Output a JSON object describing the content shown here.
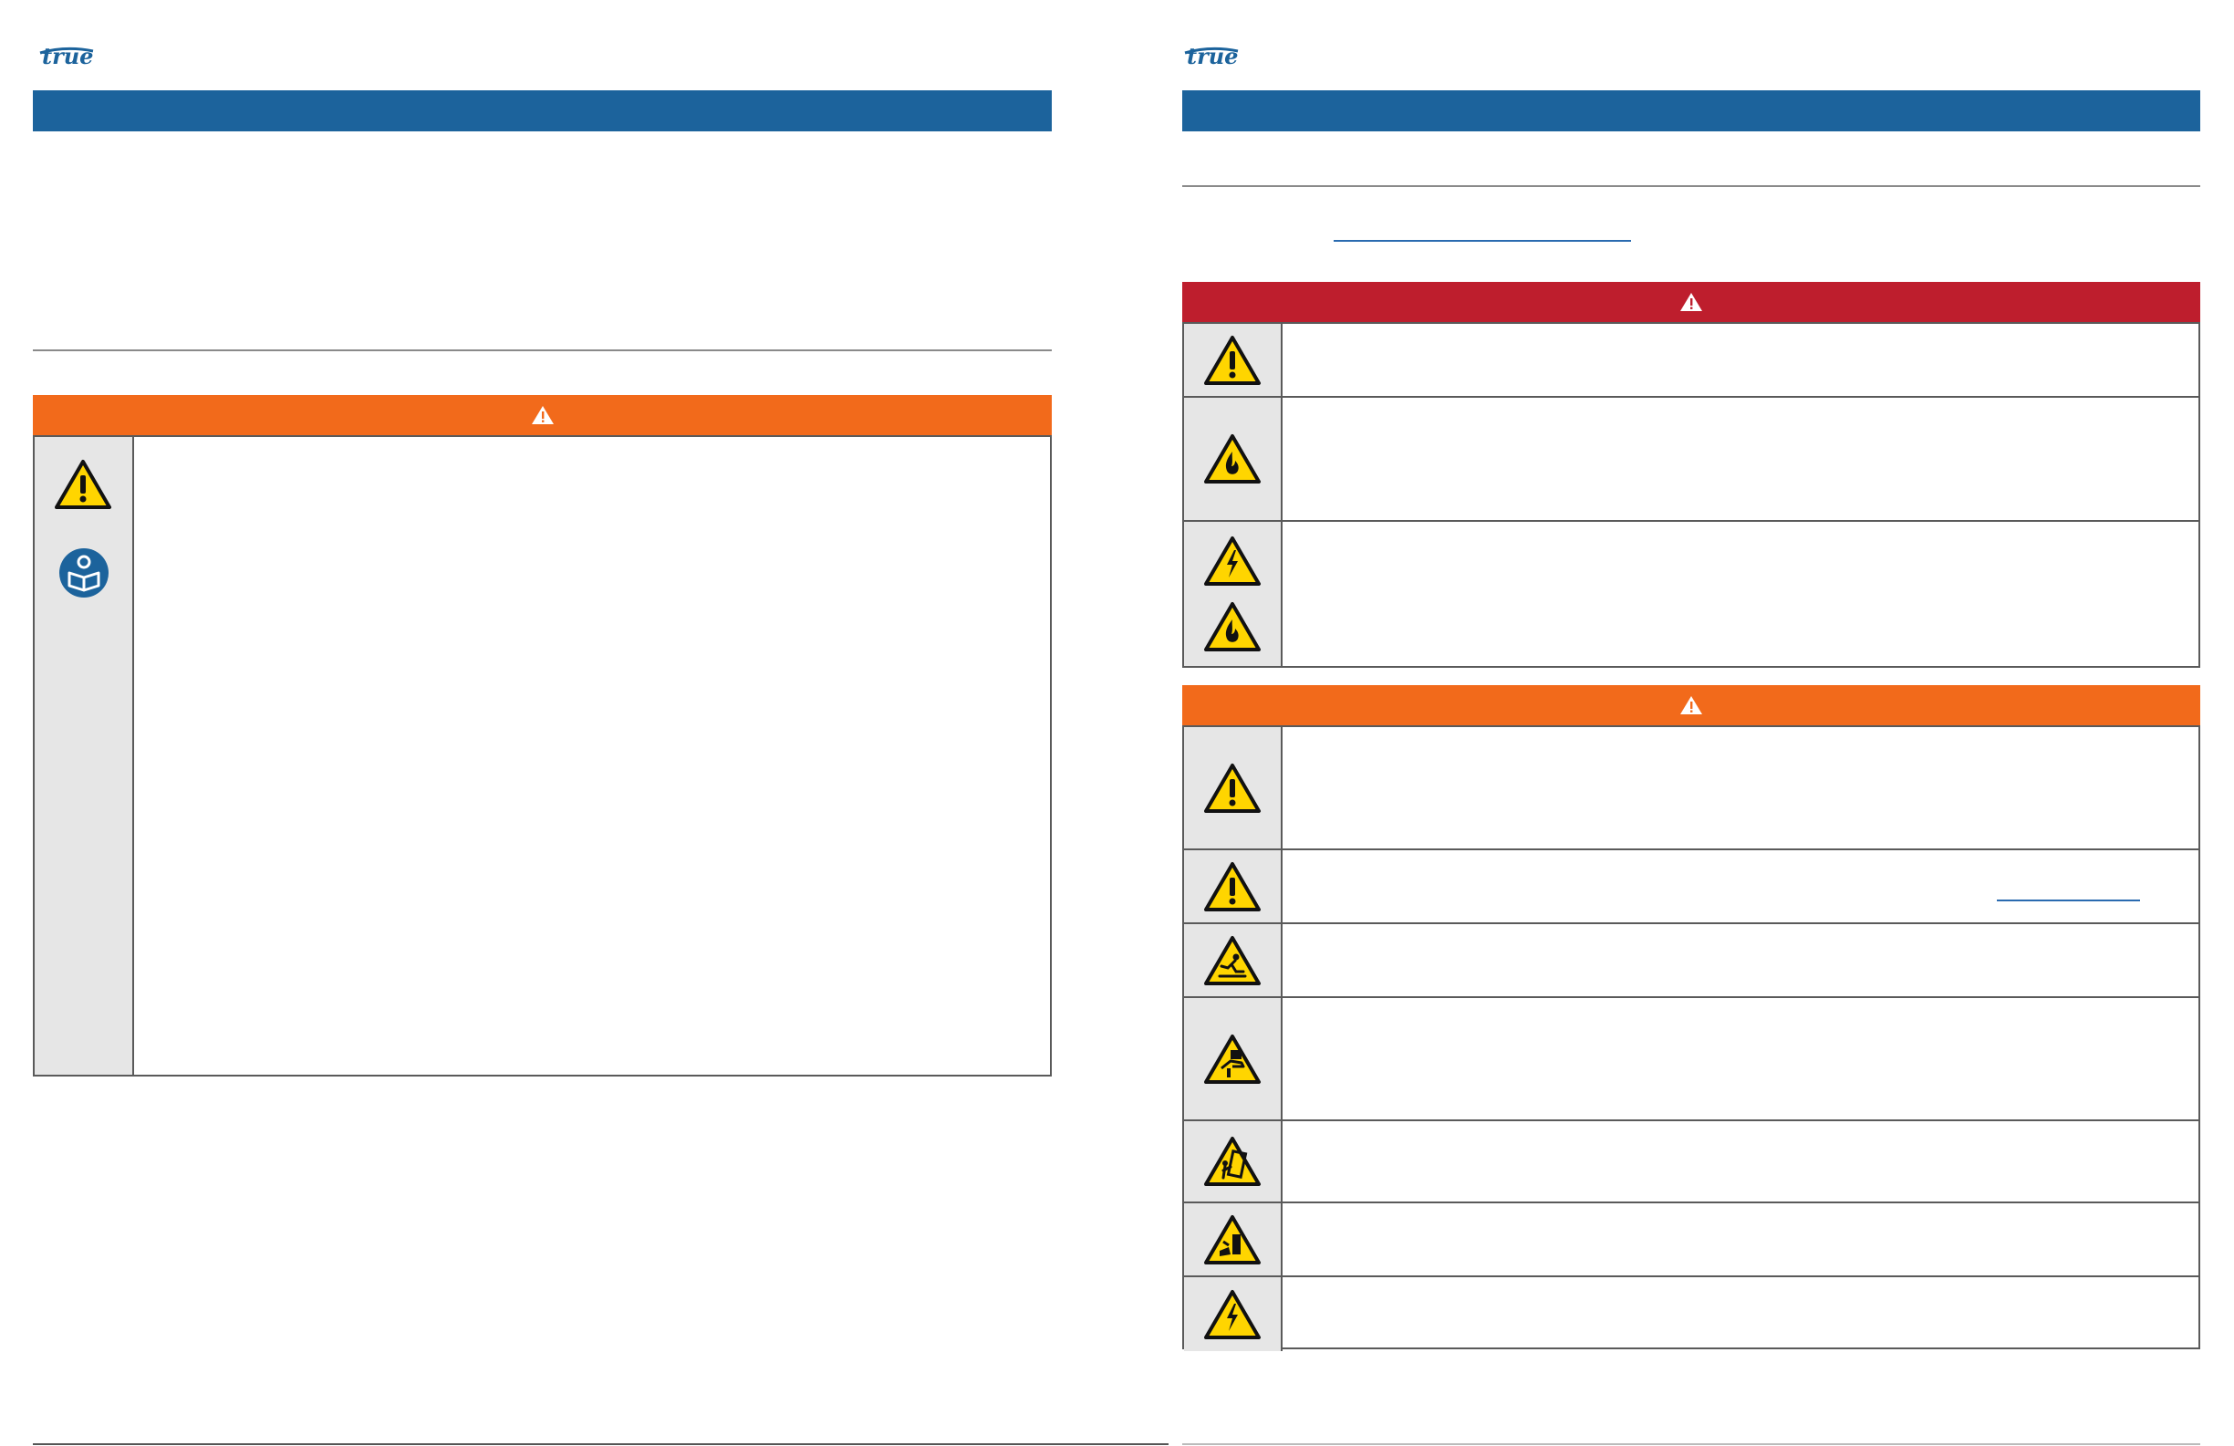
{
  "brand": {
    "logo_text": "true",
    "accent_color": "#1c639c"
  },
  "colors": {
    "warning_orange": "#f26a1b",
    "danger_red": "#be1e2d",
    "icon_yellow": "#ffd500",
    "icon_column_gray": "#e6e6e6"
  },
  "left_page": {
    "warning_panel": {
      "banner_icon": "warning-triangle-icon",
      "icons": [
        "general-warning-icon",
        "read-manual-icon"
      ]
    }
  },
  "right_page": {
    "danger_panel": {
      "banner_icon": "warning-triangle-icon",
      "rows": [
        {
          "icons": [
            "general-warning-icon"
          ]
        },
        {
          "icons": [
            "flammable-icon"
          ]
        },
        {
          "icons": [
            "electrical-hazard-icon",
            "flammable-icon"
          ]
        }
      ]
    },
    "warning_panel": {
      "banner_icon": "warning-triangle-icon",
      "rows": [
        {
          "icons": [
            "general-warning-icon"
          ]
        },
        {
          "icons": [
            "general-warning-icon"
          ]
        },
        {
          "icons": [
            "slip-hazard-icon"
          ]
        },
        {
          "icons": [
            "pinch-hazard-icon"
          ]
        },
        {
          "icons": [
            "tip-over-hazard-icon"
          ]
        },
        {
          "icons": [
            "crush-hazard-icon"
          ]
        },
        {
          "icons": [
            "electrical-hazard-icon"
          ]
        }
      ]
    }
  }
}
